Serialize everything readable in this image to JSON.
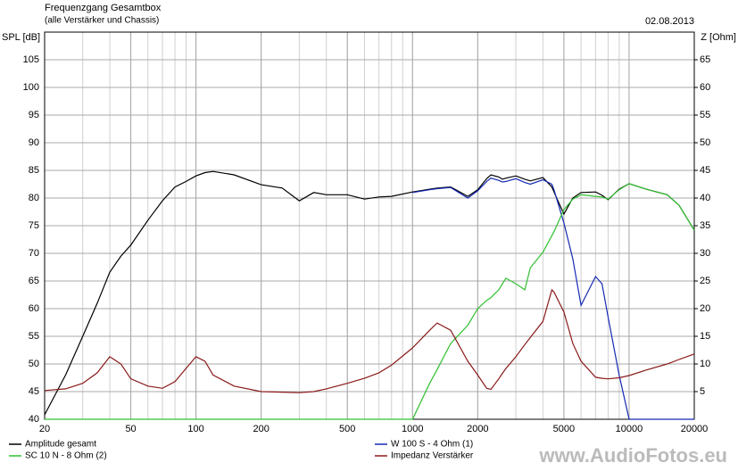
{
  "chart_data": {
    "type": "line",
    "title": "Frequenzgang Gesamtbox",
    "subtitle": "(alle Verstärker und Chassis)",
    "date": "02.08.2013",
    "ylabel": "SPL [dB]",
    "y2label": "Z [Ohm]",
    "watermark": "www.AudioFotos.eu",
    "xlog": true,
    "grid": true,
    "legend": "bottom",
    "xlim": [
      20,
      20000
    ],
    "xticks": [
      20,
      50,
      100,
      200,
      500,
      1000,
      2000,
      5000,
      10000,
      20000
    ],
    "ylim": [
      40,
      110
    ],
    "yticks": [
      40,
      45,
      50,
      55,
      60,
      65,
      70,
      75,
      80,
      85,
      90,
      95,
      100,
      105
    ],
    "y2lim": [
      0,
      70
    ],
    "y2ticks": [
      5,
      10,
      15,
      20,
      25,
      30,
      35,
      40,
      45,
      50,
      55,
      60,
      65
    ],
    "x": [
      20,
      25,
      30,
      35,
      40,
      45,
      50,
      60,
      70,
      80,
      90,
      100,
      110,
      120,
      150,
      200,
      250,
      300,
      350,
      400,
      500,
      600,
      700,
      800,
      1000,
      1200,
      1300,
      1500,
      1800,
      2000,
      2200,
      2300,
      2500,
      2600,
      2700,
      3000,
      3300,
      3500,
      4000,
      4400,
      4500,
      5000,
      5500,
      6000,
      7000,
      7500,
      8000,
      9000,
      10000,
      12000,
      15000,
      17000,
      20000
    ],
    "series": [
      {
        "name": "Amplitude gesamt",
        "color": "#000000",
        "values": [
          40.8,
          48,
          55,
          61,
          66.6,
          69.5,
          71.5,
          76,
          79.5,
          82,
          83,
          84,
          84.6,
          84.8,
          84.2,
          82.4,
          81.8,
          79.5,
          81,
          80.6,
          80.6,
          79.8,
          80.2,
          80.3,
          81.1,
          81.6,
          81.8,
          82,
          80.3,
          81.5,
          83.5,
          84.2,
          83.8,
          83.4,
          83.6,
          84,
          83.4,
          83.1,
          83.7,
          82,
          81.1,
          77.1,
          80,
          81,
          81.1,
          80.5,
          79.7,
          81.6,
          82.6,
          81.6,
          80.6,
          78.7,
          74.2
        ]
      },
      {
        "name": "W 100 S - 4 Ohm (1)",
        "color": "#1428b4",
        "values": [
          null,
          null,
          null,
          null,
          null,
          null,
          null,
          null,
          null,
          null,
          null,
          null,
          null,
          null,
          null,
          null,
          null,
          null,
          null,
          null,
          null,
          null,
          null,
          null,
          81,
          81.5,
          81.7,
          81.9,
          80,
          81.3,
          83,
          83.6,
          83.2,
          82.9,
          83,
          83.5,
          82.8,
          82.5,
          83.3,
          82.5,
          81.5,
          75.5,
          69,
          60.6,
          65.8,
          64.5,
          58.5,
          48,
          40,
          40,
          40,
          40,
          40
        ]
      },
      {
        "name": "SC 10 N - 8 Ohm (2)",
        "color": "#30c030",
        "values": [
          40,
          40,
          40,
          40,
          40,
          40,
          40,
          40,
          40,
          40,
          40,
          40,
          40,
          40,
          40,
          40,
          40,
          40,
          40,
          40,
          40,
          40,
          40,
          40,
          40,
          46.5,
          49,
          53.7,
          57,
          60,
          61.5,
          62,
          63.4,
          64.5,
          65.5,
          64.5,
          63.4,
          67.4,
          70.2,
          73.2,
          73.9,
          77.9,
          79.8,
          80.6,
          80.3,
          80.2,
          79.8,
          81.5,
          82.6,
          81.6,
          80.6,
          78.7,
          74.2
        ]
      },
      {
        "name": "Impedanz Verstärker",
        "color": "#8b1a1a",
        "axis": "y2",
        "values": [
          5.2,
          5.5,
          6.5,
          8.4,
          11.3,
          10,
          7.3,
          6,
          5.6,
          6.8,
          9.2,
          11.3,
          10.5,
          8,
          6,
          5,
          4.9,
          4.8,
          5,
          5.5,
          6.5,
          7.4,
          8.4,
          9.8,
          12.9,
          16.1,
          17.4,
          16.1,
          10.5,
          8,
          5.6,
          5.4,
          7.3,
          8.3,
          9.2,
          11.3,
          13.5,
          14.8,
          17.7,
          23.4,
          23,
          19.4,
          13.7,
          10.5,
          7.6,
          7.4,
          7.3,
          7.5,
          7.9,
          8.9,
          10,
          10.8,
          11.8
        ]
      }
    ]
  }
}
